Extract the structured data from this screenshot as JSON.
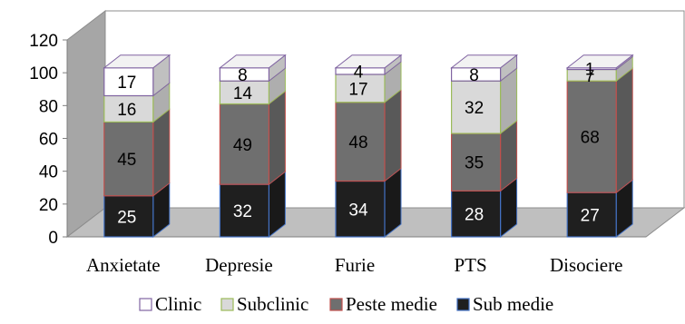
{
  "chart_data": {
    "type": "bar",
    "stacked": true,
    "three_d": true,
    "categories": [
      "Anxietate",
      "Depresie",
      "Furie",
      "PTS",
      "Disociere"
    ],
    "series": [
      {
        "name": "Sub medie",
        "values": [
          25,
          32,
          34,
          28,
          27
        ],
        "color": "#1f1f1f",
        "edge": "#4472c4",
        "label_color": "#ffffff"
      },
      {
        "name": "Peste medie",
        "values": [
          45,
          49,
          48,
          35,
          68
        ],
        "color": "#6f6f6f",
        "edge": "#c0504d",
        "label_color": "#000000"
      },
      {
        "name": "Subclinic",
        "values": [
          16,
          14,
          17,
          32,
          7
        ],
        "color": "#d9d9d9",
        "edge": "#9bbb59",
        "label_color": "#000000"
      },
      {
        "name": "Clinic",
        "values": [
          17,
          8,
          4,
          8,
          1
        ],
        "color": "#ffffff",
        "edge": "#8064a2",
        "label_color": "#000000"
      }
    ],
    "ylim": [
      0,
      120
    ],
    "yticks": [
      0,
      20,
      40,
      60,
      80,
      100,
      120
    ],
    "grid": false,
    "legend_position": "bottom",
    "legend_order": [
      "Clinic",
      "Subclinic",
      "Peste medie",
      "Sub medie"
    ]
  }
}
